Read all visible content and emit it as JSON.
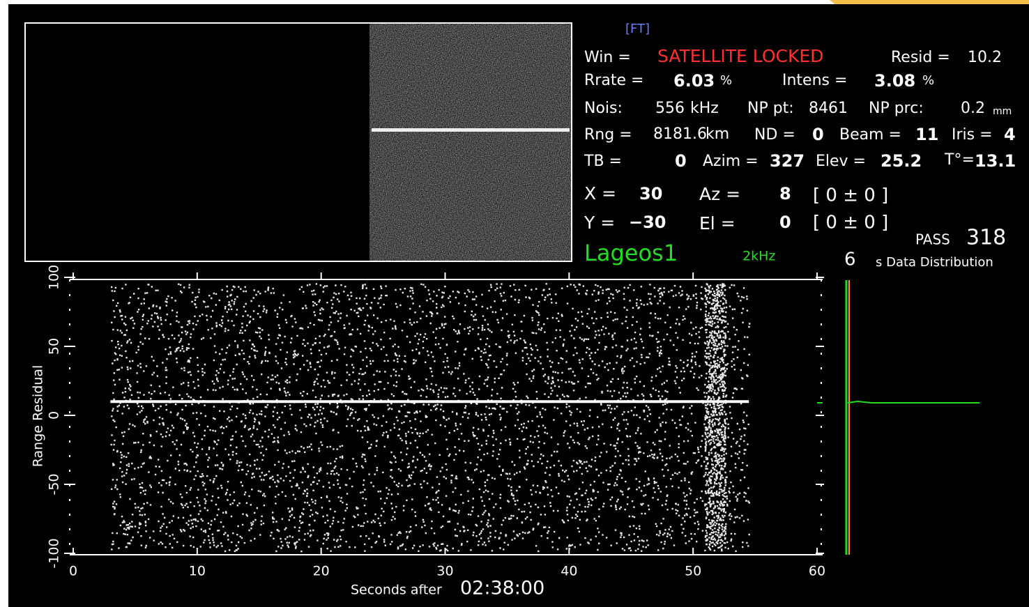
{
  "header": {
    "mode": "[FT]"
  },
  "status": {
    "win_label": "Win =",
    "win": "SATELLITE LOCKED",
    "resid_label": "Resid =",
    "resid": "10.2",
    "rrate_label": "Rrate =",
    "rrate": "6.03",
    "rrate_unit": "%",
    "intens_label": "Intens =",
    "intens": "3.08",
    "intens_unit": "%",
    "nois_label": "Nois:",
    "nois": "556",
    "nois_unit": "kHz",
    "np_pt_label": "NP pt:",
    "np_pt": "8461",
    "np_prc_label": "NP prc:",
    "np_prc": "0.2",
    "np_prc_unit": "mm",
    "rng_label": "Rng =",
    "rng": "8181.6",
    "rng_unit": "km",
    "nd_label": "ND =",
    "nd": "0",
    "beam_label": "Beam =",
    "beam": "11",
    "iris_label": "Iris =",
    "iris": "4",
    "tb_label": "TB =",
    "tb": "0",
    "azim_label": "Azim =",
    "azim": "327",
    "elev_label": "Elev =",
    "elev": "25.2",
    "temp_label": "T°=",
    "temp": "13.1",
    "x_label": "X =",
    "x": "30",
    "az_label": "Az =",
    "az": "8",
    "az_bracket": "[ 0 ± 0 ]",
    "y_label": "Y =",
    "y": "−30",
    "el_label": "El =",
    "el": "0",
    "el_bracket": "[ 0 ± 0 ]",
    "pass_label": "PASS",
    "pass": "318",
    "satellite": "Lageos1",
    "rate": "2kHz",
    "dist_seconds": "6",
    "dist_label": "s Data Distribution"
  },
  "chart_data": {
    "type": "scatter",
    "x_label": "Seconds after",
    "x_label_time": "02:38:00",
    "y_label": "Range Residual",
    "xlim": [
      0,
      60
    ],
    "xticks": [
      0,
      10,
      20,
      30,
      40,
      50,
      60
    ],
    "ylim": [
      -100,
      100
    ],
    "yticks": [
      -100,
      -50,
      0,
      50,
      100
    ],
    "series": [
      {
        "color": "#ffffff",
        "x": [
          3,
          54.5
        ],
        "values": [
          10,
          10
        ]
      }
    ]
  }
}
